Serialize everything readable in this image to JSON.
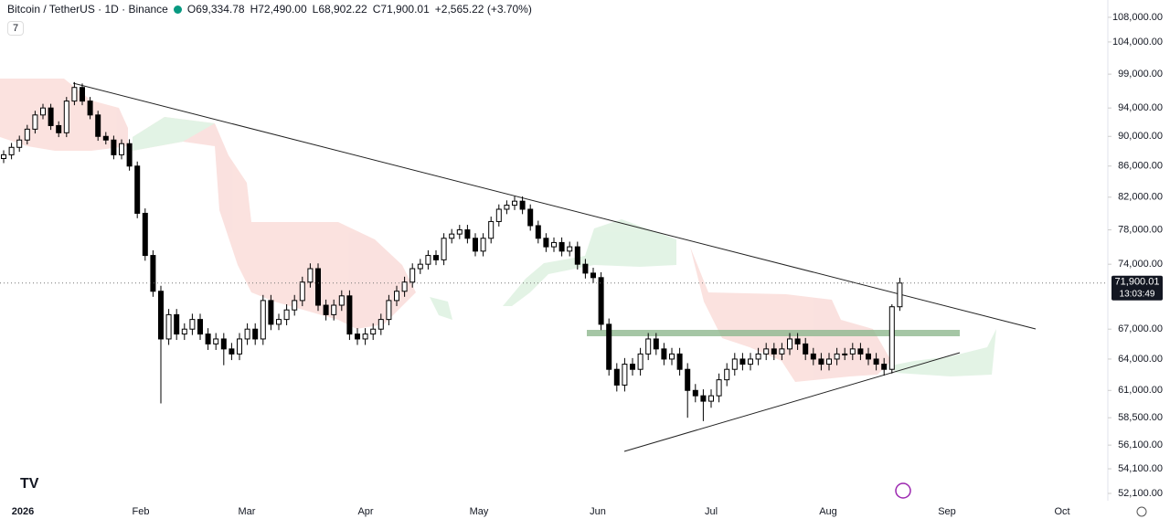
{
  "header": {
    "symbol": "Bitcoin / TetherUS · 1D · Binance",
    "ohlc": [
      "O69,334.78",
      "H72,490.00",
      "L68,902.22",
      "C71,900.01",
      "+2,565.22 (+3.70%)"
    ],
    "interval_chip": "7"
  },
  "chart_data": {
    "type": "candlestick",
    "log_scale": true,
    "up_color": "#ffffff",
    "down_color": "#000000",
    "wick_color": "#000000",
    "open": [
      87000,
      87500,
      88500,
      89500,
      91000,
      93000,
      94000,
      91500,
      90500,
      95000,
      97000,
      95000,
      93000,
      90000,
      89500,
      87500,
      89000,
      86000,
      80000,
      75000,
      71000,
      66000,
      68500,
      66500,
      67000,
      68000,
      66500,
      65500,
      66000,
      65000,
      64500,
      66000,
      67000,
      66000,
      70000,
      67500,
      68000,
      69000,
      70000,
      72000,
      73500,
      69500,
      68500,
      69500,
      70500,
      66500,
      66000,
      66500,
      67000,
      68000,
      70000,
      71000,
      72000,
      73500,
      74000,
      75000,
      74500,
      77000,
      77500,
      78000,
      77000,
      75500,
      77000,
      79000,
      80500,
      81000,
      81500,
      80500,
      78500,
      77000,
      76000,
      76500,
      75500,
      76000,
      74000,
      73000,
      72500,
      67500,
      63000,
      61500,
      63500,
      63000,
      64500,
      66000,
      65000,
      64000,
      64500,
      63000,
      61000,
      60500,
      60000,
      60500,
      62000,
      63000,
      64000,
      63500,
      64000,
      64500,
      65000,
      64500,
      65000,
      66000,
      65500,
      64500,
      64000,
      63500,
      64000,
      64500,
      64500,
      65000,
      64500,
      64000,
      63500,
      63000,
      69334.78
    ],
    "high": [
      88100,
      89100,
      90100,
      91600,
      93600,
      94600,
      94600,
      92100,
      95600,
      97800,
      97600,
      95600,
      93600,
      90600,
      90100,
      89600,
      89600,
      86600,
      80600,
      75600,
      71600,
      69100,
      69100,
      67600,
      68600,
      68600,
      67100,
      66600,
      66600,
      65600,
      66600,
      67600,
      67600,
      70600,
      70600,
      68600,
      69600,
      70600,
      72600,
      74100,
      74100,
      70100,
      70100,
      71100,
      71100,
      67100,
      67100,
      67600,
      68600,
      70600,
      71600,
      72600,
      74100,
      74600,
      75600,
      75600,
      77600,
      78100,
      78600,
      78600,
      77600,
      77600,
      79600,
      81100,
      81600,
      82100,
      82100,
      81100,
      79100,
      77600,
      77100,
      77100,
      76600,
      76600,
      74600,
      73600,
      73100,
      68100,
      63600,
      64100,
      64100,
      65100,
      66600,
      66600,
      65600,
      65100,
      65100,
      63600,
      61600,
      61100,
      61100,
      62600,
      63600,
      64600,
      64600,
      64600,
      65100,
      65600,
      65600,
      65600,
      66600,
      66600,
      66100,
      65100,
      64600,
      64600,
      65100,
      65100,
      65600,
      65600,
      65100,
      64600,
      64100,
      69600,
      72490
    ],
    "low": [
      86400,
      86900,
      87900,
      88900,
      90400,
      92400,
      90900,
      89900,
      89900,
      94400,
      94400,
      92400,
      89400,
      88900,
      86900,
      86900,
      85400,
      79400,
      74400,
      70400,
      59800,
      65400,
      65900,
      65900,
      66400,
      65900,
      64900,
      64900,
      63400,
      63900,
      63900,
      65400,
      65400,
      65400,
      66900,
      66900,
      67400,
      68400,
      69400,
      71400,
      68900,
      67900,
      67900,
      68900,
      65900,
      65400,
      65400,
      65900,
      66400,
      67400,
      69400,
      70400,
      71400,
      72900,
      73400,
      73900,
      73900,
      76400,
      76900,
      76400,
      74900,
      74900,
      76400,
      78400,
      79900,
      80400,
      79900,
      77900,
      76400,
      75400,
      75400,
      74900,
      74900,
      73400,
      72400,
      71900,
      66900,
      62400,
      60900,
      60900,
      62400,
      62400,
      63900,
      64400,
      63400,
      63400,
      62400,
      58500,
      59900,
      58200,
      59400,
      59900,
      61400,
      62400,
      62900,
      62900,
      63400,
      63900,
      63900,
      63900,
      64400,
      64900,
      63900,
      63400,
      62900,
      62900,
      63400,
      63900,
      63900,
      63900,
      63400,
      62900,
      62400,
      62600,
      68902.22
    ],
    "close": [
      87500,
      88500,
      89500,
      91000,
      93000,
      94000,
      91500,
      90500,
      95000,
      97000,
      95000,
      93000,
      90000,
      89500,
      87500,
      89000,
      86000,
      80000,
      75000,
      71000,
      66000,
      68500,
      66500,
      67000,
      68000,
      66500,
      65500,
      66000,
      65000,
      64500,
      66000,
      67000,
      66000,
      70000,
      67500,
      68000,
      69000,
      70000,
      72000,
      73500,
      69500,
      68500,
      69500,
      70500,
      66500,
      66000,
      66500,
      67000,
      68000,
      70000,
      71000,
      72000,
      73500,
      74000,
      75000,
      74500,
      77000,
      77500,
      78000,
      77000,
      75500,
      77000,
      79000,
      80500,
      81000,
      81500,
      80500,
      78500,
      77000,
      76000,
      76500,
      75500,
      76000,
      74000,
      73000,
      72500,
      67500,
      63000,
      61500,
      63500,
      63000,
      64500,
      66000,
      65000,
      64000,
      64500,
      63000,
      61000,
      60500,
      60000,
      60500,
      62000,
      63000,
      64000,
      63500,
      64000,
      64500,
      65000,
      64500,
      65000,
      66000,
      65500,
      64500,
      64000,
      63500,
      64000,
      64500,
      64500,
      65000,
      64500,
      64000,
      63500,
      63000,
      69334.78,
      71900.01
    ],
    "ylim": [
      51520,
      110900
    ],
    "yticks": [
      {
        "value": 108000,
        "label": "108,000.00"
      },
      {
        "value": 104000,
        "label": "104,000.00"
      },
      {
        "value": 99000,
        "label": "99,000.00"
      },
      {
        "value": 94000,
        "label": "94,000.00"
      },
      {
        "value": 90000,
        "label": "90,000.00"
      },
      {
        "value": 86000,
        "label": "86,000.00"
      },
      {
        "value": 82000,
        "label": "82,000.00"
      },
      {
        "value": 78000,
        "label": "78,000.00"
      },
      {
        "value": 74000,
        "label": "74,000.00"
      },
      {
        "value": 67000,
        "label": "67,000.00"
      },
      {
        "value": 64000,
        "label": "64,000.00"
      },
      {
        "value": 61000,
        "label": "61,000.00"
      },
      {
        "value": 58500,
        "label": "58,500.00"
      },
      {
        "value": 56100,
        "label": "56,100.00"
      },
      {
        "value": 54100,
        "label": "54,100.00"
      },
      {
        "value": 52100,
        "label": "52,100.00"
      }
    ],
    "x_labels": [
      "2026",
      "Feb",
      "Mar",
      "Apr",
      "May",
      "Jun",
      "Jul",
      "Aug",
      "Sep",
      "Oct"
    ],
    "last_price": {
      "value": 71900.01,
      "label": "71,900.01"
    },
    "countdown": "13:03:49"
  }
}
